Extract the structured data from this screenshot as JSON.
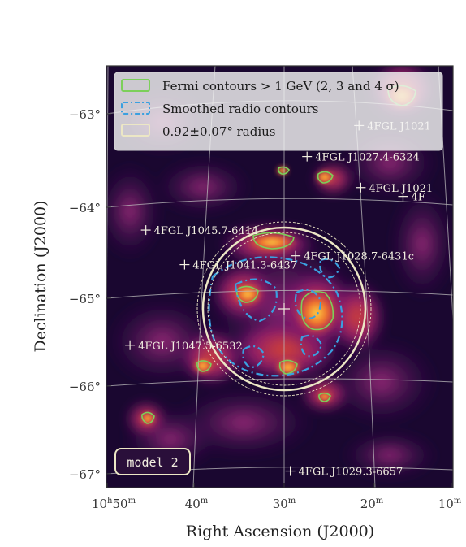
{
  "chart_data": {
    "type": "heatmap",
    "xlabel": "Right Ascension (J2000)",
    "ylabel": "Declination (J2000)",
    "x_ticks": [
      {
        "ra_min": 50,
        "label": "10h50m"
      },
      {
        "ra_min": 40,
        "label": "40m"
      },
      {
        "ra_min": 30,
        "label": "30m"
      },
      {
        "ra_min": 20,
        "label": "20m"
      },
      {
        "ra_min": 10,
        "label": "10m"
      }
    ],
    "x_tick_labels": {
      "t0": "10",
      "t0h": "h",
      "t0v": "50",
      "t0m": "m",
      "t1": "40",
      "t2": "30",
      "t3": "20",
      "t4": "10",
      "unit_m": "m"
    },
    "y_ticks": [
      {
        "dec": -63,
        "label": "−63°"
      },
      {
        "dec": -64,
        "label": "−64°"
      },
      {
        "dec": -65,
        "label": "−65°"
      },
      {
        "dec": -66,
        "label": "−66°"
      },
      {
        "dec": -67,
        "label": "−67°"
      }
    ],
    "legend": {
      "placement": "upper-left",
      "entries": [
        {
          "label": "Fermi contours > 1 GeV (2, 3 and 4 σ)",
          "color": "#7ccf5a",
          "style": "solid"
        },
        {
          "label": "Smoothed radio contours",
          "color": "#3aa0e0",
          "style": "dash-dot"
        },
        {
          "label": "0.92±0.07° radius",
          "color": "#ece7c5",
          "style": "solid"
        }
      ]
    },
    "sources": [
      {
        "name": "4FGL J1021",
        "ra_min": 21.5,
        "dec": -63.05
      },
      {
        "name": "4FGL J1027.4-6324",
        "ra_min": 27.4,
        "dec": -63.4
      },
      {
        "name": "4FGL J1021",
        "ra_min": 21.3,
        "dec": -63.75
      },
      {
        "name": "4F",
        "ra_min": 16.5,
        "dec": -63.85
      },
      {
        "name": "4FGL J1045.7-6414",
        "ra_min": 45.7,
        "dec": -64.23
      },
      {
        "name": "4FGL J1028.7-6431c",
        "ra_min": 28.7,
        "dec": -64.52
      },
      {
        "name": "4FGL J1041.3-6437",
        "ra_min": 41.3,
        "dec": -64.62
      },
      {
        "name": "4FGL J1047.5-6532",
        "ra_min": 47.5,
        "dec": -65.53
      },
      {
        "name": "4FGL J1029.3-6657",
        "ra_min": 29.3,
        "dec": -66.95
      }
    ],
    "circle_radius_deg": 0.92,
    "circle_radius_err_deg": 0.07,
    "model_badge": "model 2",
    "colormap": "inferno",
    "grid": true
  }
}
